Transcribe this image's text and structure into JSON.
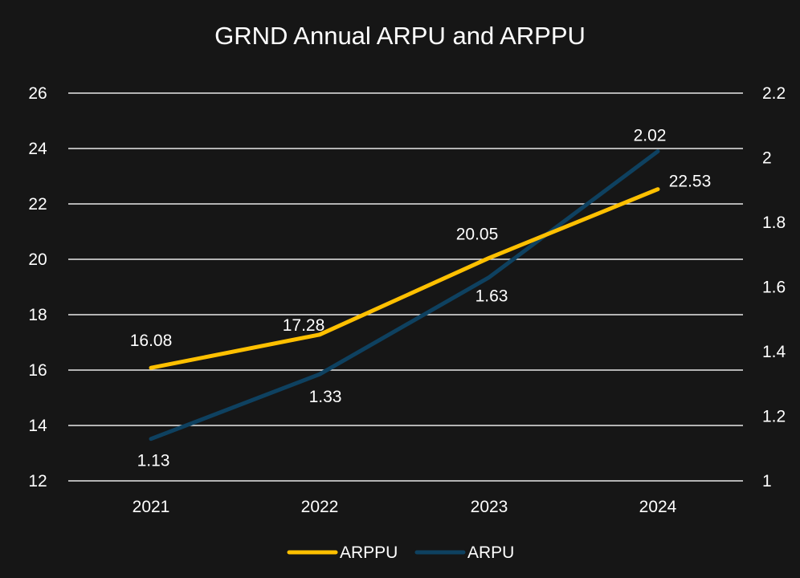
{
  "chart_data": {
    "type": "line",
    "title": "GRND Annual ARPU and ARPPU",
    "categories": [
      "2021",
      "2022",
      "2023",
      "2024"
    ],
    "y_left": {
      "min": 12,
      "max": 26,
      "ticks": [
        12,
        14,
        16,
        18,
        20,
        22,
        24,
        26
      ]
    },
    "y_right": {
      "min": 1,
      "max": 2.2,
      "ticks": [
        "1",
        "1.2",
        "1.4",
        "1.6",
        "1.8",
        "2",
        "2.2"
      ]
    },
    "grid": true,
    "legend_position": "bottom",
    "series": [
      {
        "name": "ARPPU",
        "axis": "left",
        "color": "#ffc000",
        "values": [
          16.08,
          17.28,
          20.05,
          22.53
        ],
        "labels": [
          "16.08",
          "17.28",
          "20.05",
          "22.53"
        ]
      },
      {
        "name": "ARPU",
        "axis": "right",
        "color": "#0e4160",
        "values": [
          1.13,
          1.33,
          1.63,
          2.02
        ],
        "labels": [
          "1.13",
          "1.33",
          "1.63",
          "2.02"
        ]
      }
    ]
  }
}
